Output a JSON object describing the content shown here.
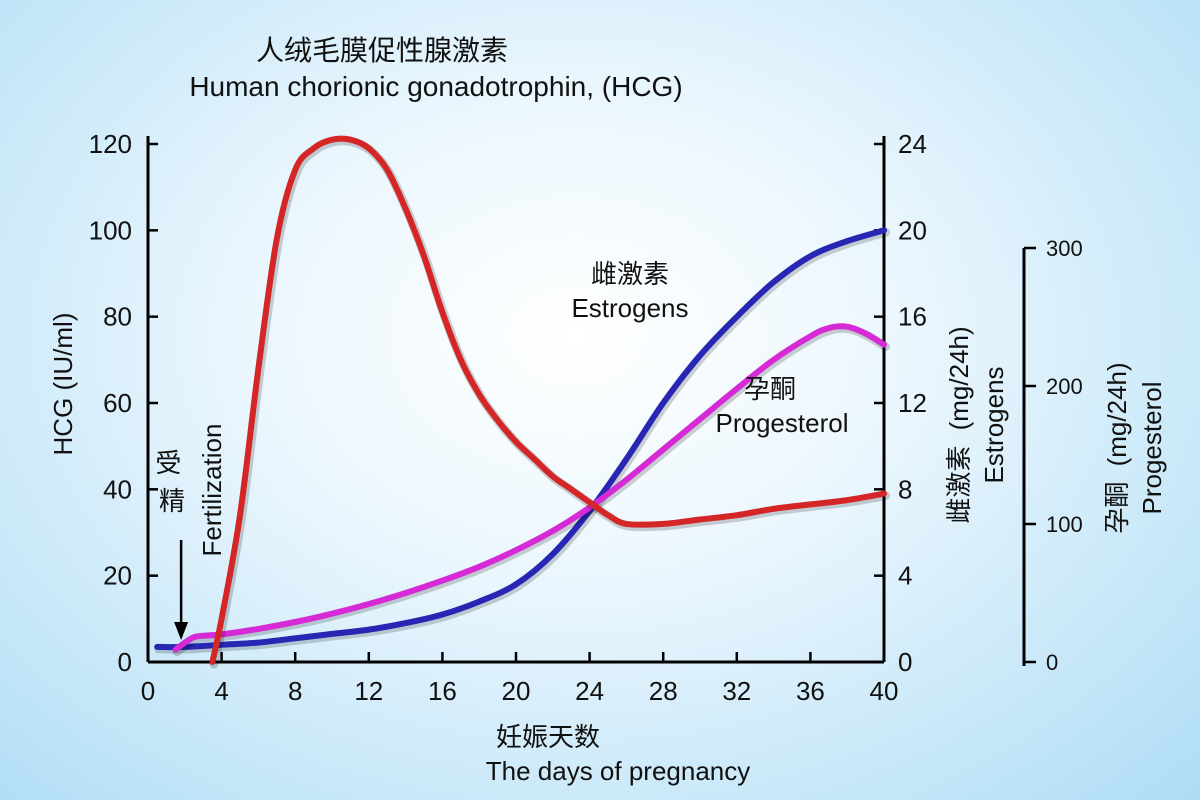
{
  "chart_data": {
    "type": "line",
    "title_cn": "人绒毛膜促性腺激素",
    "title_en": "Human chorionic gonadotrophin, (HCG)",
    "xlabel_cn": "妊娠天数",
    "xlabel_en": "The days of pregnancy",
    "xlim": [
      0,
      40
    ],
    "xticks": [
      "0",
      "4",
      "8",
      "12",
      "16",
      "20",
      "24",
      "28",
      "32",
      "36",
      "40"
    ],
    "axes": {
      "hcg": {
        "label": "HCG (IU/ml)",
        "lim": [
          0,
          120
        ],
        "ticks": [
          "0",
          "20",
          "40",
          "60",
          "80",
          "100",
          "120"
        ]
      },
      "estrogens": {
        "label_cn": "雌激素",
        "label_unit": "(mg/24h)",
        "label_en": "Estrogens",
        "lim": [
          0,
          24
        ],
        "ticks": [
          "0",
          "4",
          "8",
          "12",
          "16",
          "20",
          "24"
        ]
      },
      "progesterol": {
        "label_cn": "孕酮",
        "label_unit": "(mg/24h)",
        "label_en": "Progesterol",
        "lim": [
          0,
          300
        ],
        "ticks": [
          "0",
          "100",
          "200",
          "300"
        ]
      }
    },
    "series": [
      {
        "key": "hcg",
        "axis": "hcg",
        "color": "#d42626",
        "points": [
          [
            3.5,
            0
          ],
          [
            4,
            10
          ],
          [
            5,
            34
          ],
          [
            6,
            68
          ],
          [
            7,
            98
          ],
          [
            8,
            114
          ],
          [
            9,
            119
          ],
          [
            10,
            121
          ],
          [
            11,
            121
          ],
          [
            12,
            119
          ],
          [
            13,
            114
          ],
          [
            14,
            105
          ],
          [
            15,
            94
          ],
          [
            16,
            81
          ],
          [
            17,
            70
          ],
          [
            18,
            62
          ],
          [
            19,
            56
          ],
          [
            20,
            51
          ],
          [
            21,
            47
          ],
          [
            22,
            43
          ],
          [
            23,
            40
          ],
          [
            24,
            37
          ],
          [
            25,
            34
          ],
          [
            26,
            32
          ],
          [
            28,
            32
          ],
          [
            30,
            33
          ],
          [
            32,
            34
          ],
          [
            34,
            35.5
          ],
          [
            36,
            36.5
          ],
          [
            38,
            37.5
          ],
          [
            40,
            39
          ]
        ]
      },
      {
        "key": "estrogens",
        "axis": "estrogens",
        "color": "#2727b3",
        "points": [
          [
            0.5,
            0.7
          ],
          [
            2,
            0.7
          ],
          [
            4,
            0.8
          ],
          [
            6,
            0.9
          ],
          [
            8,
            1.1
          ],
          [
            10,
            1.3
          ],
          [
            12,
            1.5
          ],
          [
            14,
            1.8
          ],
          [
            16,
            2.2
          ],
          [
            18,
            2.8
          ],
          [
            20,
            3.6
          ],
          [
            22,
            5.0
          ],
          [
            24,
            7.0
          ],
          [
            26,
            9.4
          ],
          [
            28,
            12.0
          ],
          [
            30,
            14.2
          ],
          [
            32,
            16.0
          ],
          [
            34,
            17.6
          ],
          [
            36,
            18.8
          ],
          [
            38,
            19.5
          ],
          [
            40,
            20
          ]
        ]
      },
      {
        "key": "progesterol",
        "axis": "progesterol",
        "color": "#d62ad6",
        "points": [
          [
            1.5,
            9
          ],
          [
            2,
            14
          ],
          [
            2.5,
            18
          ],
          [
            3,
            19
          ],
          [
            4,
            20
          ],
          [
            6,
            24
          ],
          [
            8,
            29
          ],
          [
            10,
            35
          ],
          [
            12,
            42
          ],
          [
            14,
            50
          ],
          [
            16,
            59
          ],
          [
            18,
            69
          ],
          [
            20,
            81
          ],
          [
            22,
            95
          ],
          [
            24,
            112
          ],
          [
            26,
            132
          ],
          [
            28,
            154
          ],
          [
            30,
            176
          ],
          [
            32,
            198
          ],
          [
            34,
            219
          ],
          [
            36,
            236
          ],
          [
            37,
            242
          ],
          [
            38,
            243
          ],
          [
            39,
            238
          ],
          [
            40,
            230
          ]
        ]
      }
    ],
    "annotations": {
      "estrogens_cn": "雌激素",
      "estrogens_en": "Estrogens",
      "progesterol_cn": "孕酮",
      "progesterol_en": "Progesterol",
      "fertilization_cn": "受精",
      "fertilization_en": "Fertilization",
      "fertilization_day": 1.8
    }
  }
}
